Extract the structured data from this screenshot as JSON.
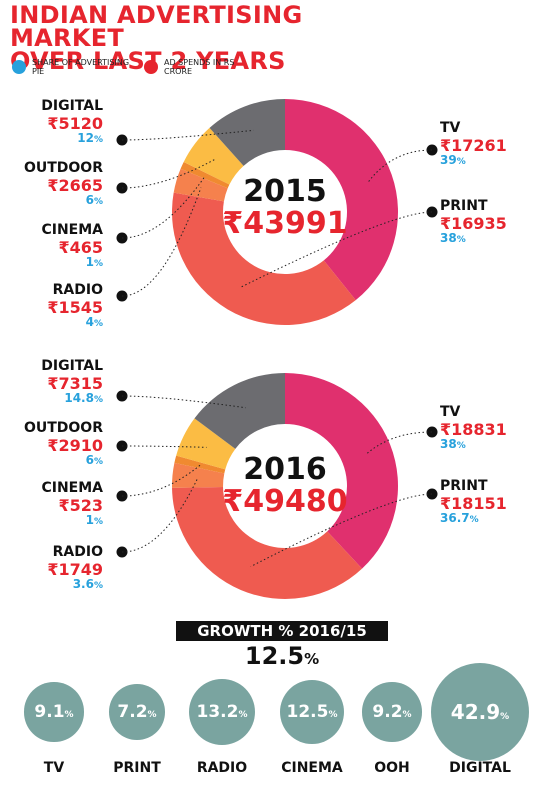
{
  "title": [
    "INDIAN ADVERTISING MARKET",
    "OVER LAST 2 YEARS"
  ],
  "legend": [
    {
      "label": "SHARE OF ADVERTISING PIE",
      "color": "#27a1dc"
    },
    {
      "label": "AD SPENDS IN RS CRORE",
      "color": "#e6252e"
    }
  ],
  "colors": {
    "TV": "#e0306e",
    "PRINT": "#ef5b50",
    "RADIO": "#f5814d",
    "CINEMA": "#f08a30",
    "OUTDOOR": "#fbbc44",
    "DIGITAL": "#6c6c70",
    "bubble": "#7aa4a0"
  },
  "chart_data": [
    {
      "type": "pie",
      "year": "2015",
      "total": "₹43991",
      "segments": [
        {
          "label": "TV",
          "value": 17261,
          "value_text": "₹17261",
          "share": 39,
          "share_text": "39%"
        },
        {
          "label": "PRINT",
          "value": 16935,
          "value_text": "₹16935",
          "share": 38,
          "share_text": "38%"
        },
        {
          "label": "RADIO",
          "value": 1545,
          "value_text": "₹1545",
          "share": 4,
          "share_text": "4%"
        },
        {
          "label": "CINEMA",
          "value": 465,
          "value_text": "₹465",
          "share": 1,
          "share_text": "1%"
        },
        {
          "label": "OUTDOOR",
          "value": 2665,
          "value_text": "₹2665",
          "share": 6,
          "share_text": "6%"
        },
        {
          "label": "DIGITAL",
          "value": 5120,
          "value_text": "₹5120",
          "share": 12,
          "share_text": "12%"
        }
      ]
    },
    {
      "type": "pie",
      "year": "2016",
      "total": "₹49480",
      "segments": [
        {
          "label": "TV",
          "value": 18831,
          "value_text": "₹18831",
          "share": 38,
          "share_text": "38%"
        },
        {
          "label": "PRINT",
          "value": 18151,
          "value_text": "₹18151",
          "share": 36.7,
          "share_text": "36.7%"
        },
        {
          "label": "RADIO",
          "value": 1749,
          "value_text": "₹1749",
          "share": 3.6,
          "share_text": "3.6%"
        },
        {
          "label": "CINEMA",
          "value": 523,
          "value_text": "₹523",
          "share": 1,
          "share_text": "1%"
        },
        {
          "label": "OUTDOOR",
          "value": 2910,
          "value_text": "₹2910",
          "share": 6,
          "share_text": "6%"
        },
        {
          "label": "DIGITAL",
          "value": 7315,
          "value_text": "₹7315",
          "share": 14.8,
          "share_text": "14.8%"
        }
      ]
    },
    {
      "type": "bubble",
      "title": "GROWTH % 2016/15",
      "total": "12.5%",
      "categories": [
        "TV",
        "PRINT",
        "RADIO",
        "CINEMA",
        "OOH",
        "DIGITAL"
      ],
      "values": [
        9.1,
        7.2,
        13.2,
        12.5,
        9.2,
        42.9
      ],
      "value_texts": [
        "9.1%",
        "7.2%",
        "13.2%",
        "12.5%",
        "9.2%",
        "42.9%"
      ]
    }
  ]
}
